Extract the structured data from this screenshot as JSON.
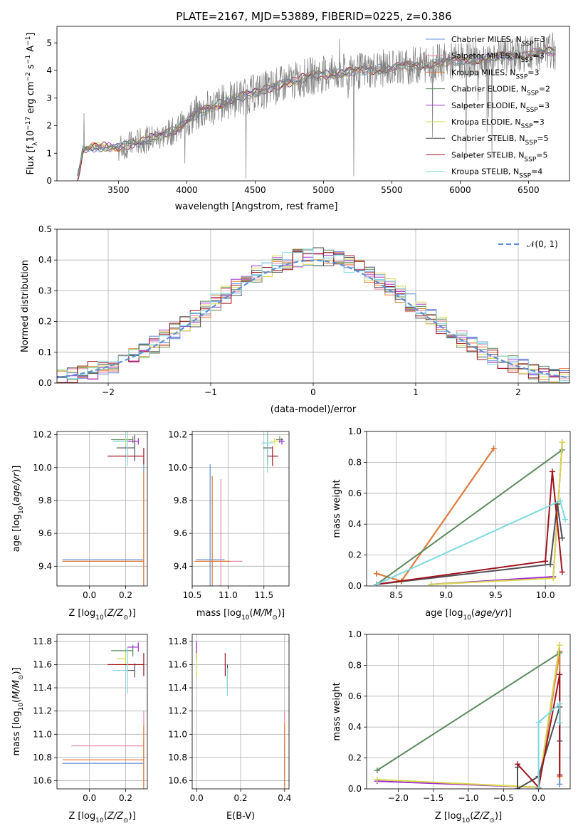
{
  "title": "PLATE=2167, MJD=53889, FIBERID=0225, z=0.386",
  "colors": {
    "chabrier_miles": "#5f8fd6",
    "salpeter_miles": "#e88aa8",
    "kroupa_miles": "#e07c33",
    "chabrier_elodie": "#5c8a5c",
    "salpeter_elodie": "#a02ed6",
    "kroupa_elodie": "#d8d84a",
    "chabrier_stelib": "#4f4f55",
    "salpeter_stelib": "#a0141e",
    "kroupa_stelib": "#7dd9e0",
    "data_spectrum": "#808080",
    "gaussian": "#5f8fd6"
  },
  "chart_data": [
    {
      "type": "line",
      "panel": "spectrum",
      "xlabel": "wavelength [Angstrom, rest frame]",
      "ylabel": "Flux [f_λ 10^-17 erg cm^-2 s^-1 A^-1]",
      "xlim": [
        3050,
        6800
      ],
      "ylim": [
        0,
        5.6
      ],
      "xticks": [
        "3500",
        "4000",
        "4500",
        "5000",
        "5500",
        "6000",
        "6500"
      ],
      "yticks": [
        "0",
        "1",
        "2",
        "3",
        "4",
        "5"
      ],
      "legend_position": "right",
      "legend": [
        {
          "label": "Chabrier MILES, N_SSP=3",
          "color_key": "chabrier_miles"
        },
        {
          "label": "Salpeter MILES, N_SSP=3",
          "color_key": "salpeter_miles"
        },
        {
          "label": "Kroupa MILES, N_SSP=3",
          "color_key": "kroupa_miles"
        },
        {
          "label": "Chabrier ELODIE, N_SSP=2",
          "color_key": "chabrier_elodie"
        },
        {
          "label": "Salpeter ELODIE, N_SSP=3",
          "color_key": "salpeter_elodie"
        },
        {
          "label": "Kroupa ELODIE, N_SSP=3",
          "color_key": "kroupa_elodie"
        },
        {
          "label": "Chabrier STELIB, N_SSP=5",
          "color_key": "chabrier_stelib"
        },
        {
          "label": "Salpeter STELIB, N_SSP=5",
          "color_key": "salpeter_stelib"
        },
        {
          "label": "Kroupa STELIB, N_SSP=4",
          "color_key": "kroupa_stelib"
        }
      ],
      "model_continuum": {
        "x": [
          3200,
          3240,
          3300,
          3400,
          3500,
          3600,
          3700,
          3800,
          3900,
          4000,
          4100,
          4200,
          4300,
          4400,
          4500,
          4600,
          4700,
          4800,
          4900,
          5000,
          5100,
          5200,
          5300,
          5400,
          5500,
          5600,
          5700,
          5800,
          5900,
          6000,
          6100,
          6200,
          6300,
          6400,
          6500,
          6600,
          6700
        ],
        "y": [
          0,
          1.1,
          1.2,
          1.25,
          1.2,
          1.35,
          1.5,
          1.6,
          1.8,
          2.2,
          2.5,
          2.7,
          2.9,
          3.05,
          3.2,
          3.35,
          3.5,
          3.65,
          3.8,
          3.85,
          3.9,
          3.95,
          4.0,
          4.05,
          4.1,
          4.15,
          4.2,
          4.25,
          4.3,
          4.35,
          4.4,
          4.45,
          4.5,
          4.55,
          4.6,
          4.65,
          4.7
        ]
      }
    },
    {
      "type": "line",
      "panel": "residual_distribution",
      "xlabel": "(data-model)/error",
      "ylabel": "Normed distribution",
      "xlim": [
        -2.5,
        2.5
      ],
      "ylim": [
        0,
        0.5
      ],
      "xticks": [
        "−2",
        "−1",
        "0",
        "1",
        "2"
      ],
      "yticks": [
        "0.0",
        "0.1",
        "0.2",
        "0.3",
        "0.4",
        "0.5"
      ],
      "legend_position": "top-right",
      "legend": [
        {
          "label": "𝒩(0, 1)",
          "color_key": "gaussian"
        }
      ]
    },
    {
      "type": "scatter",
      "panel": "age_vs_Z",
      "xlabel": "Z [log10(Z/Z⊙)]",
      "ylabel": "age  [log10(age/yr)]",
      "xlim": [
        -0.18,
        0.32
      ],
      "ylim": [
        9.28,
        10.22
      ],
      "xticks": [
        "0.0",
        "0.2"
      ],
      "yticks": [
        "9.4",
        "9.6",
        "9.8",
        "10.0",
        "10.2"
      ],
      "points": [
        {
          "key": "chabrier_miles",
          "x": 0.3,
          "y": 9.44,
          "xerr_lo": 0.45,
          "yerr": 0.6
        },
        {
          "key": "salpeter_miles",
          "x": 0.3,
          "y": 9.43,
          "xerr_lo": 0.4,
          "yerr": 0.5
        },
        {
          "key": "kroupa_miles",
          "x": 0.3,
          "y": 9.43,
          "xerr_lo": 0.45,
          "yerr": 0.55
        },
        {
          "key": "chabrier_elodie",
          "x": 0.24,
          "y": 10.17,
          "xerr_lo": 0.12,
          "yerr": 0.02
        },
        {
          "key": "salpeter_elodie",
          "x": 0.27,
          "y": 10.16,
          "xerr_lo": 0.06,
          "yerr": 0.02
        },
        {
          "key": "kroupa_elodie",
          "x": 0.2,
          "y": 10.16,
          "xerr_lo": 0.05,
          "yerr": 0.02
        },
        {
          "key": "chabrier_stelib",
          "x": 0.25,
          "y": 10.12,
          "xerr_lo": 0.1,
          "yerr": 0.08
        },
        {
          "key": "salpeter_stelib",
          "x": 0.3,
          "y": 10.07,
          "xerr_lo": 0.2,
          "yerr": 0.05
        },
        {
          "key": "kroupa_stelib",
          "x": 0.21,
          "y": 10.16,
          "xerr_lo": 0.08,
          "yerr": 0.15
        }
      ]
    },
    {
      "type": "scatter",
      "panel": "age_vs_mass",
      "xlabel": "mass [log10(M/M⊙)]",
      "ylabel": "",
      "xlim": [
        10.5,
        11.85
      ],
      "ylim": [
        9.28,
        10.22
      ],
      "xticks": [
        "10.5",
        "11.0",
        "11.5"
      ],
      "yticks": [
        "9.4",
        "9.6",
        "9.8",
        "10.0",
        "10.2"
      ],
      "points": [
        {
          "key": "chabrier_miles",
          "x": 10.75,
          "y": 9.44,
          "xerr": 0.2,
          "yerr": 0.58
        },
        {
          "key": "salpeter_miles",
          "x": 10.9,
          "y": 9.43,
          "xerr": 0.3,
          "yerr": 0.5
        },
        {
          "key": "kroupa_miles",
          "x": 10.78,
          "y": 9.43,
          "xerr": 0.25,
          "yerr": 0.52
        },
        {
          "key": "chabrier_elodie",
          "x": 11.72,
          "y": 10.17,
          "xerr": 0.05,
          "yerr": 0.02
        },
        {
          "key": "salpeter_elodie",
          "x": 11.75,
          "y": 10.16,
          "xerr": 0.04,
          "yerr": 0.02
        },
        {
          "key": "kroupa_elodie",
          "x": 11.65,
          "y": 10.16,
          "xerr": 0.06,
          "yerr": 0.02
        },
        {
          "key": "chabrier_stelib",
          "x": 11.55,
          "y": 10.12,
          "xerr": 0.06,
          "yerr": 0.1
        },
        {
          "key": "salpeter_stelib",
          "x": 11.62,
          "y": 10.07,
          "xerr": 0.08,
          "yerr": 0.06
        },
        {
          "key": "kroupa_stelib",
          "x": 11.55,
          "y": 10.15,
          "xerr": 0.08,
          "yerr": 0.18
        }
      ]
    },
    {
      "type": "line",
      "panel": "mass_weight_vs_age",
      "xlabel": "age  [log10(age/yr)]",
      "ylabel": "mass weight",
      "xlim": [
        8.2,
        10.25
      ],
      "ylim": [
        0,
        1.0
      ],
      "xticks": [
        "8.5",
        "9.0",
        "9.5",
        "10.0"
      ],
      "yticks": [
        "0.0",
        "0.2",
        "0.4",
        "0.6",
        "0.8",
        "1.0"
      ],
      "series": [
        {
          "key": "chabrier_miles",
          "x": [
            8.3,
            8.55,
            9.48
          ],
          "y": [
            0.08,
            0.03,
            0.89
          ]
        },
        {
          "key": "salpeter_miles",
          "x": [
            8.3,
            8.55,
            9.48
          ],
          "y": [
            0.08,
            0.03,
            0.89
          ]
        },
        {
          "key": "kroupa_miles",
          "x": [
            8.3,
            8.55,
            9.48
          ],
          "y": [
            0.08,
            0.03,
            0.89
          ]
        },
        {
          "key": "chabrier_elodie",
          "x": [
            8.3,
            10.17
          ],
          "y": [
            0.01,
            0.88
          ]
        },
        {
          "key": "salpeter_elodie",
          "x": [
            8.85,
            10.08,
            10.17
          ],
          "y": [
            0.01,
            0.06,
            0.93
          ]
        },
        {
          "key": "kroupa_elodie",
          "x": [
            8.85,
            10.08,
            10.17
          ],
          "y": [
            0.01,
            0.05,
            0.93
          ]
        },
        {
          "key": "chabrier_stelib",
          "x": [
            8.3,
            10.05,
            10.12,
            10.17
          ],
          "y": [
            0.01,
            0.14,
            0.53,
            0.31
          ]
        },
        {
          "key": "salpeter_stelib",
          "x": [
            8.3,
            10.0,
            10.07,
            10.17
          ],
          "y": [
            0.01,
            0.16,
            0.74,
            0.09
          ]
        },
        {
          "key": "kroupa_stelib",
          "x": [
            8.3,
            10.15,
            10.2
          ],
          "y": [
            0.01,
            0.55,
            0.43
          ]
        }
      ]
    },
    {
      "type": "scatter",
      "panel": "mass_vs_Z",
      "xlabel": "Z [log10(Z/Z⊙)]",
      "ylabel": "mass [log10(M/M⊙)]",
      "xlim": [
        -0.18,
        0.32
      ],
      "ylim": [
        10.53,
        11.86
      ],
      "xticks": [
        "0.0",
        "0.2"
      ],
      "yticks": [
        "10.6",
        "10.8",
        "11.0",
        "11.2",
        "11.4",
        "11.6",
        "11.8"
      ],
      "points": [
        {
          "key": "chabrier_miles",
          "x": 0.3,
          "y": 10.75,
          "xerr_lo": 0.45,
          "yerr": 0.2
        },
        {
          "key": "salpeter_miles",
          "x": 0.3,
          "y": 10.9,
          "xerr_lo": 0.4,
          "yerr": 0.3
        },
        {
          "key": "kroupa_miles",
          "x": 0.3,
          "y": 10.78,
          "xerr_lo": 0.45,
          "yerr": 0.3
        },
        {
          "key": "chabrier_elodie",
          "x": 0.24,
          "y": 11.72,
          "xerr_lo": 0.12,
          "yerr": 0.05
        },
        {
          "key": "salpeter_elodie",
          "x": 0.27,
          "y": 11.75,
          "xerr_lo": 0.06,
          "yerr": 0.04
        },
        {
          "key": "kroupa_elodie",
          "x": 0.2,
          "y": 11.65,
          "xerr_lo": 0.05,
          "yerr": 0.06
        },
        {
          "key": "chabrier_stelib",
          "x": 0.25,
          "y": 11.55,
          "xerr_lo": 0.1,
          "yerr": 0.06
        },
        {
          "key": "salpeter_stelib",
          "x": 0.3,
          "y": 11.6,
          "xerr_lo": 0.2,
          "yerr": 0.1
        },
        {
          "key": "kroupa_stelib",
          "x": 0.21,
          "y": 11.55,
          "xerr_lo": 0.08,
          "yerr": 0.2
        }
      ]
    },
    {
      "type": "scatter",
      "panel": "mass_vs_EBV",
      "xlabel": "E(B-V)",
      "ylabel": "",
      "xlim": [
        -0.02,
        0.42
      ],
      "ylim": [
        10.53,
        11.86
      ],
      "xticks": [
        "0.0",
        "0.2",
        "0.4"
      ],
      "yticks": [
        "10.6",
        "10.8",
        "11.0",
        "11.2",
        "11.4",
        "11.6",
        "11.8"
      ],
      "points": [
        {
          "key": "chabrier_miles",
          "x": 0.4,
          "y": 10.75,
          "yerr": 0.2
        },
        {
          "key": "salpeter_miles",
          "x": 0.4,
          "y": 10.9,
          "yerr": 0.3
        },
        {
          "key": "kroupa_miles",
          "x": 0.4,
          "y": 10.8,
          "yerr": 0.3
        },
        {
          "key": "chabrier_elodie",
          "x": 0.0,
          "y": 11.72,
          "yerr": 0.08
        },
        {
          "key": "salpeter_elodie",
          "x": 0.0,
          "y": 11.72,
          "yerr": 0.08
        },
        {
          "key": "kroupa_elodie",
          "x": 0.0,
          "y": 11.6,
          "yerr": 0.1
        },
        {
          "key": "chabrier_stelib",
          "x": 0.14,
          "y": 11.5,
          "yerr": 0.1
        },
        {
          "key": "salpeter_stelib",
          "x": 0.13,
          "y": 11.6,
          "yerr": 0.1
        },
        {
          "key": "kroupa_stelib",
          "x": 0.14,
          "y": 11.45,
          "yerr": 0.12
        }
      ]
    },
    {
      "type": "line",
      "panel": "mass_weight_vs_Z",
      "xlabel": "Z [log10(Z/Z⊙)]",
      "ylabel": "mass weight",
      "xlim": [
        -2.45,
        0.45
      ],
      "ylim": [
        0,
        1.0
      ],
      "xticks": [
        "−2.0",
        "−1.5",
        "−1.0",
        "−0.5",
        "0.0"
      ],
      "yticks": [
        "0.0",
        "0.2",
        "0.4",
        "0.6",
        "0.8",
        "1.0"
      ],
      "series": [
        {
          "key": "chabrier_miles",
          "x": [
            0.0,
            0.3,
            0.3
          ],
          "y": [
            0.0,
            0.89,
            0.03
          ]
        },
        {
          "key": "salpeter_miles",
          "x": [
            0.0,
            0.3,
            0.3
          ],
          "y": [
            0.0,
            0.89,
            0.08
          ]
        },
        {
          "key": "kroupa_miles",
          "x": [
            0.0,
            0.3,
            0.3
          ],
          "y": [
            0.0,
            0.89,
            0.08
          ]
        },
        {
          "key": "chabrier_elodie",
          "x": [
            -2.3,
            0.3
          ],
          "y": [
            0.12,
            0.88
          ]
        },
        {
          "key": "salpeter_elodie",
          "x": [
            -2.3,
            0.0,
            0.3
          ],
          "y": [
            0.05,
            0.01,
            0.93
          ]
        },
        {
          "key": "kroupa_elodie",
          "x": [
            -2.3,
            0.0,
            0.3
          ],
          "y": [
            0.06,
            0.01,
            0.93
          ]
        },
        {
          "key": "chabrier_stelib",
          "x": [
            -0.3,
            -0.3,
            0.0,
            0.3,
            0.3
          ],
          "y": [
            0.14,
            0.0,
            0.08,
            0.53,
            0.31
          ]
        },
        {
          "key": "salpeter_stelib",
          "x": [
            -0.3,
            0.0,
            0.3,
            0.3
          ],
          "y": [
            0.16,
            0.01,
            0.74,
            0.09
          ]
        },
        {
          "key": "kroupa_stelib",
          "x": [
            0.0,
            0.0,
            0.3,
            0.3
          ],
          "y": [
            0.01,
            0.43,
            0.55,
            0.43
          ]
        }
      ]
    }
  ]
}
